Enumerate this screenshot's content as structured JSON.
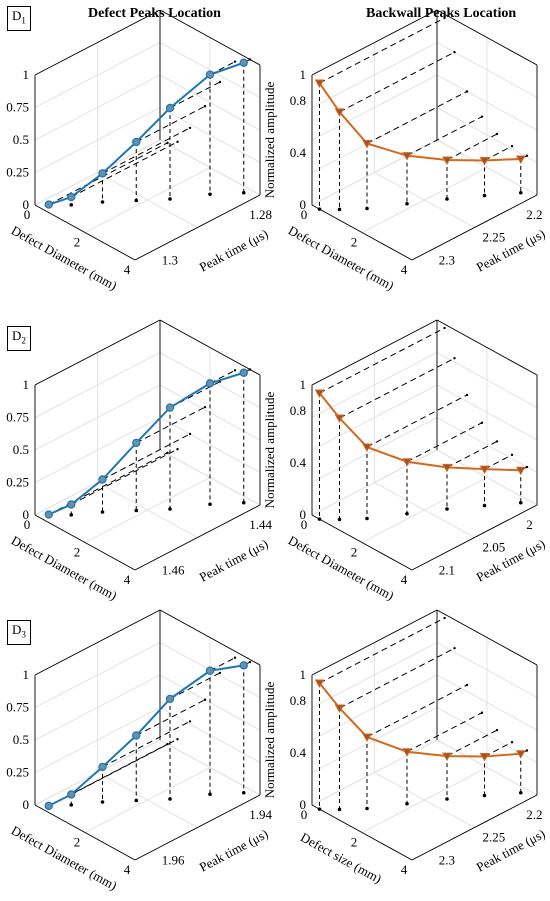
{
  "titles": {
    "left": "Defect Peaks Location",
    "right": "Backwall Peaks Location"
  },
  "row_labels": [
    {
      "main": "D",
      "sub": "1"
    },
    {
      "main": "D",
      "sub": "2"
    },
    {
      "main": "D",
      "sub": "3"
    }
  ],
  "colors": {
    "defect": "#1f77b4",
    "backwall": "#d2691e",
    "axis": "#000000",
    "grid": "#dddddd"
  },
  "chart_data": [
    {
      "type": "line3d",
      "row": "D1",
      "column": "Defect Peaks Location",
      "xlabel": "Defect Diameter (mm)",
      "ylabel": "Peak time (μs)",
      "zlabel": "Normalized amplitude",
      "x_ticks": [
        "0",
        "2",
        "4"
      ],
      "y_ticks": [
        "1.3",
        "1.28"
      ],
      "z_ticks": [
        "0",
        "0.25",
        "0.5",
        "0.75",
        "1"
      ],
      "xlim": [
        0,
        4
      ],
      "zlim": [
        0,
        1
      ],
      "series": [
        {
          "marker": "circle",
          "x": [
            0.3,
            0.7,
            1.2,
            1.8,
            2.4,
            3.0,
            3.6
          ],
          "y": [
            0.05,
            0.15,
            0.3,
            0.45,
            0.6,
            0.8,
            0.95
          ],
          "z": [
            0.01,
            0.06,
            0.22,
            0.45,
            0.7,
            0.92,
            1.0
          ]
        }
      ]
    },
    {
      "type": "line3d",
      "row": "D1",
      "column": "Backwall Peaks Location",
      "xlabel": "Defect Diameter (mm)",
      "ylabel": "Peak time (μs)",
      "zlabel": "Normalized amplitude",
      "x_ticks": [
        "0",
        "2",
        "4"
      ],
      "y_ticks": [
        "2.3",
        "2.25",
        "2.2"
      ],
      "z_ticks": [
        "0",
        "0.4",
        "0.8",
        "1"
      ],
      "xlim": [
        0,
        4
      ],
      "zlim": [
        0,
        1
      ],
      "series": [
        {
          "marker": "triangle",
          "x": [
            0.3,
            0.7,
            1.2,
            1.8,
            2.4,
            3.0,
            3.6
          ],
          "y": [
            0.0,
            0.08,
            0.2,
            0.4,
            0.6,
            0.78,
            0.95
          ],
          "z": [
            0.97,
            0.75,
            0.5,
            0.37,
            0.3,
            0.27,
            0.26
          ]
        }
      ]
    },
    {
      "type": "line3d",
      "row": "D2",
      "column": "Defect Peaks Location",
      "xlabel": "Defect Diameter (mm)",
      "ylabel": "Peak time (μs)",
      "zlabel": "Normalized amplitude",
      "x_ticks": [
        "0",
        "2",
        "4"
      ],
      "y_ticks": [
        "1.46",
        "1.44"
      ],
      "z_ticks": [
        "0",
        "0.25",
        "0.5",
        "0.75",
        "1"
      ],
      "xlim": [
        0,
        4
      ],
      "zlim": [
        0,
        1
      ],
      "series": [
        {
          "marker": "circle",
          "x": [
            0.3,
            0.7,
            1.2,
            1.8,
            2.4,
            3.0,
            3.6
          ],
          "y": [
            0.05,
            0.15,
            0.3,
            0.45,
            0.6,
            0.8,
            0.95
          ],
          "z": [
            0.01,
            0.08,
            0.25,
            0.52,
            0.78,
            0.93,
            1.0
          ]
        }
      ]
    },
    {
      "type": "line3d",
      "row": "D2",
      "column": "Backwall Peaks Location",
      "xlabel": "Defect Diameter (mm)",
      "ylabel": "Peak time (μs)",
      "zlabel": "Normalized amplitude",
      "x_ticks": [
        "0",
        "2",
        "4"
      ],
      "y_ticks": [
        "2.1",
        "2.05",
        "2"
      ],
      "z_ticks": [
        "0",
        "0.4",
        "0.8",
        "1"
      ],
      "xlim": [
        0,
        4
      ],
      "zlim": [
        0,
        1
      ],
      "series": [
        {
          "marker": "triangle",
          "x": [
            0.3,
            0.7,
            1.2,
            1.8,
            2.4,
            3.0,
            3.6
          ],
          "y": [
            0.0,
            0.08,
            0.2,
            0.4,
            0.6,
            0.78,
            0.95
          ],
          "z": [
            0.97,
            0.78,
            0.55,
            0.4,
            0.32,
            0.28,
            0.25
          ]
        }
      ]
    },
    {
      "type": "line3d",
      "row": "D3",
      "column": "Defect Peaks Location",
      "xlabel": "Defect Diameter (mm)",
      "ylabel": "Peak time (μs)",
      "zlabel": "Normalized amplitude",
      "x_ticks": [
        "2",
        "4"
      ],
      "y_ticks": [
        "1.96",
        "1.94"
      ],
      "z_ticks": [
        "0",
        "0.25",
        "0.5",
        "0.75",
        "1"
      ],
      "xlim": [
        0,
        4
      ],
      "zlim": [
        0,
        1
      ],
      "series": [
        {
          "marker": "circle",
          "x": [
            0.3,
            0.7,
            1.2,
            1.8,
            2.4,
            3.0,
            3.6
          ],
          "y": [
            0.05,
            0.15,
            0.3,
            0.45,
            0.6,
            0.8,
            0.95
          ],
          "z": [
            0.0,
            0.08,
            0.27,
            0.5,
            0.77,
            0.95,
            0.98
          ]
        }
      ]
    },
    {
      "type": "line3d",
      "row": "D3",
      "column": "Backwall Peaks Location",
      "xlabel": "Defect size (mm)",
      "ylabel": "Peak time (μs)",
      "zlabel": "Normalized amplitude",
      "x_ticks": [
        "0",
        "2",
        "4"
      ],
      "y_ticks": [
        "2.3",
        "2.25",
        "2.2"
      ],
      "z_ticks": [
        "0",
        "0.4",
        "0.8",
        "1"
      ],
      "xlim": [
        0,
        4
      ],
      "zlim": [
        0,
        1
      ],
      "series": [
        {
          "marker": "triangle",
          "x": [
            0.3,
            0.7,
            1.2,
            1.8,
            2.4,
            3.0,
            3.6
          ],
          "y": [
            0.0,
            0.08,
            0.2,
            0.4,
            0.6,
            0.78,
            0.95
          ],
          "z": [
            0.97,
            0.78,
            0.55,
            0.4,
            0.33,
            0.3,
            0.3
          ]
        }
      ]
    }
  ]
}
